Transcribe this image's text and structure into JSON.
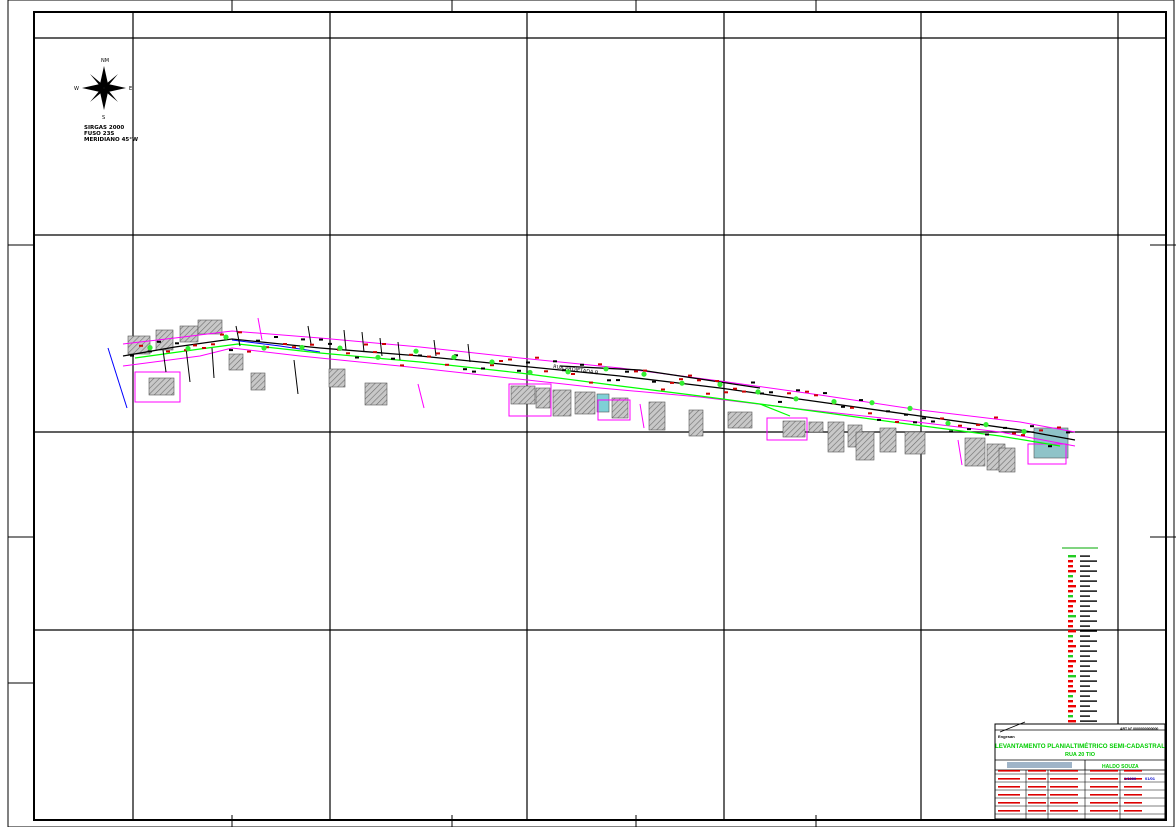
{
  "north_arrow": {
    "label_n": "NM",
    "label_e": "E",
    "label_w": "W",
    "label_s": "S"
  },
  "datum": {
    "line1": "SIRGAS 2000",
    "line2": "FUSO 23S",
    "line3": "MERIDIANO 45°W"
  },
  "street_label": "RUA PROJETADA B",
  "title_block": {
    "header_tag": "Engesan",
    "title": "LEVANTAMENTO PLANIALTIMÉTRICO SEMI-CADASTRAL",
    "subtitle": "RUA 20 TIO",
    "responsible": "HALDO SOUZA",
    "scale": "1/1000",
    "sheet": "01/01",
    "top_right_tag": "ART N° 0000000000000"
  },
  "colors": {
    "frame": "#000000",
    "street_edge": "#ff00ff",
    "street_axis": "#000000",
    "network_green": "#00ff00",
    "buildings_fill": "#b3b3b3",
    "curb_blue": "#0000ff",
    "legend_red": "#ff0000",
    "title_blue": "#0000cc",
    "title_green": "#00cc00"
  }
}
